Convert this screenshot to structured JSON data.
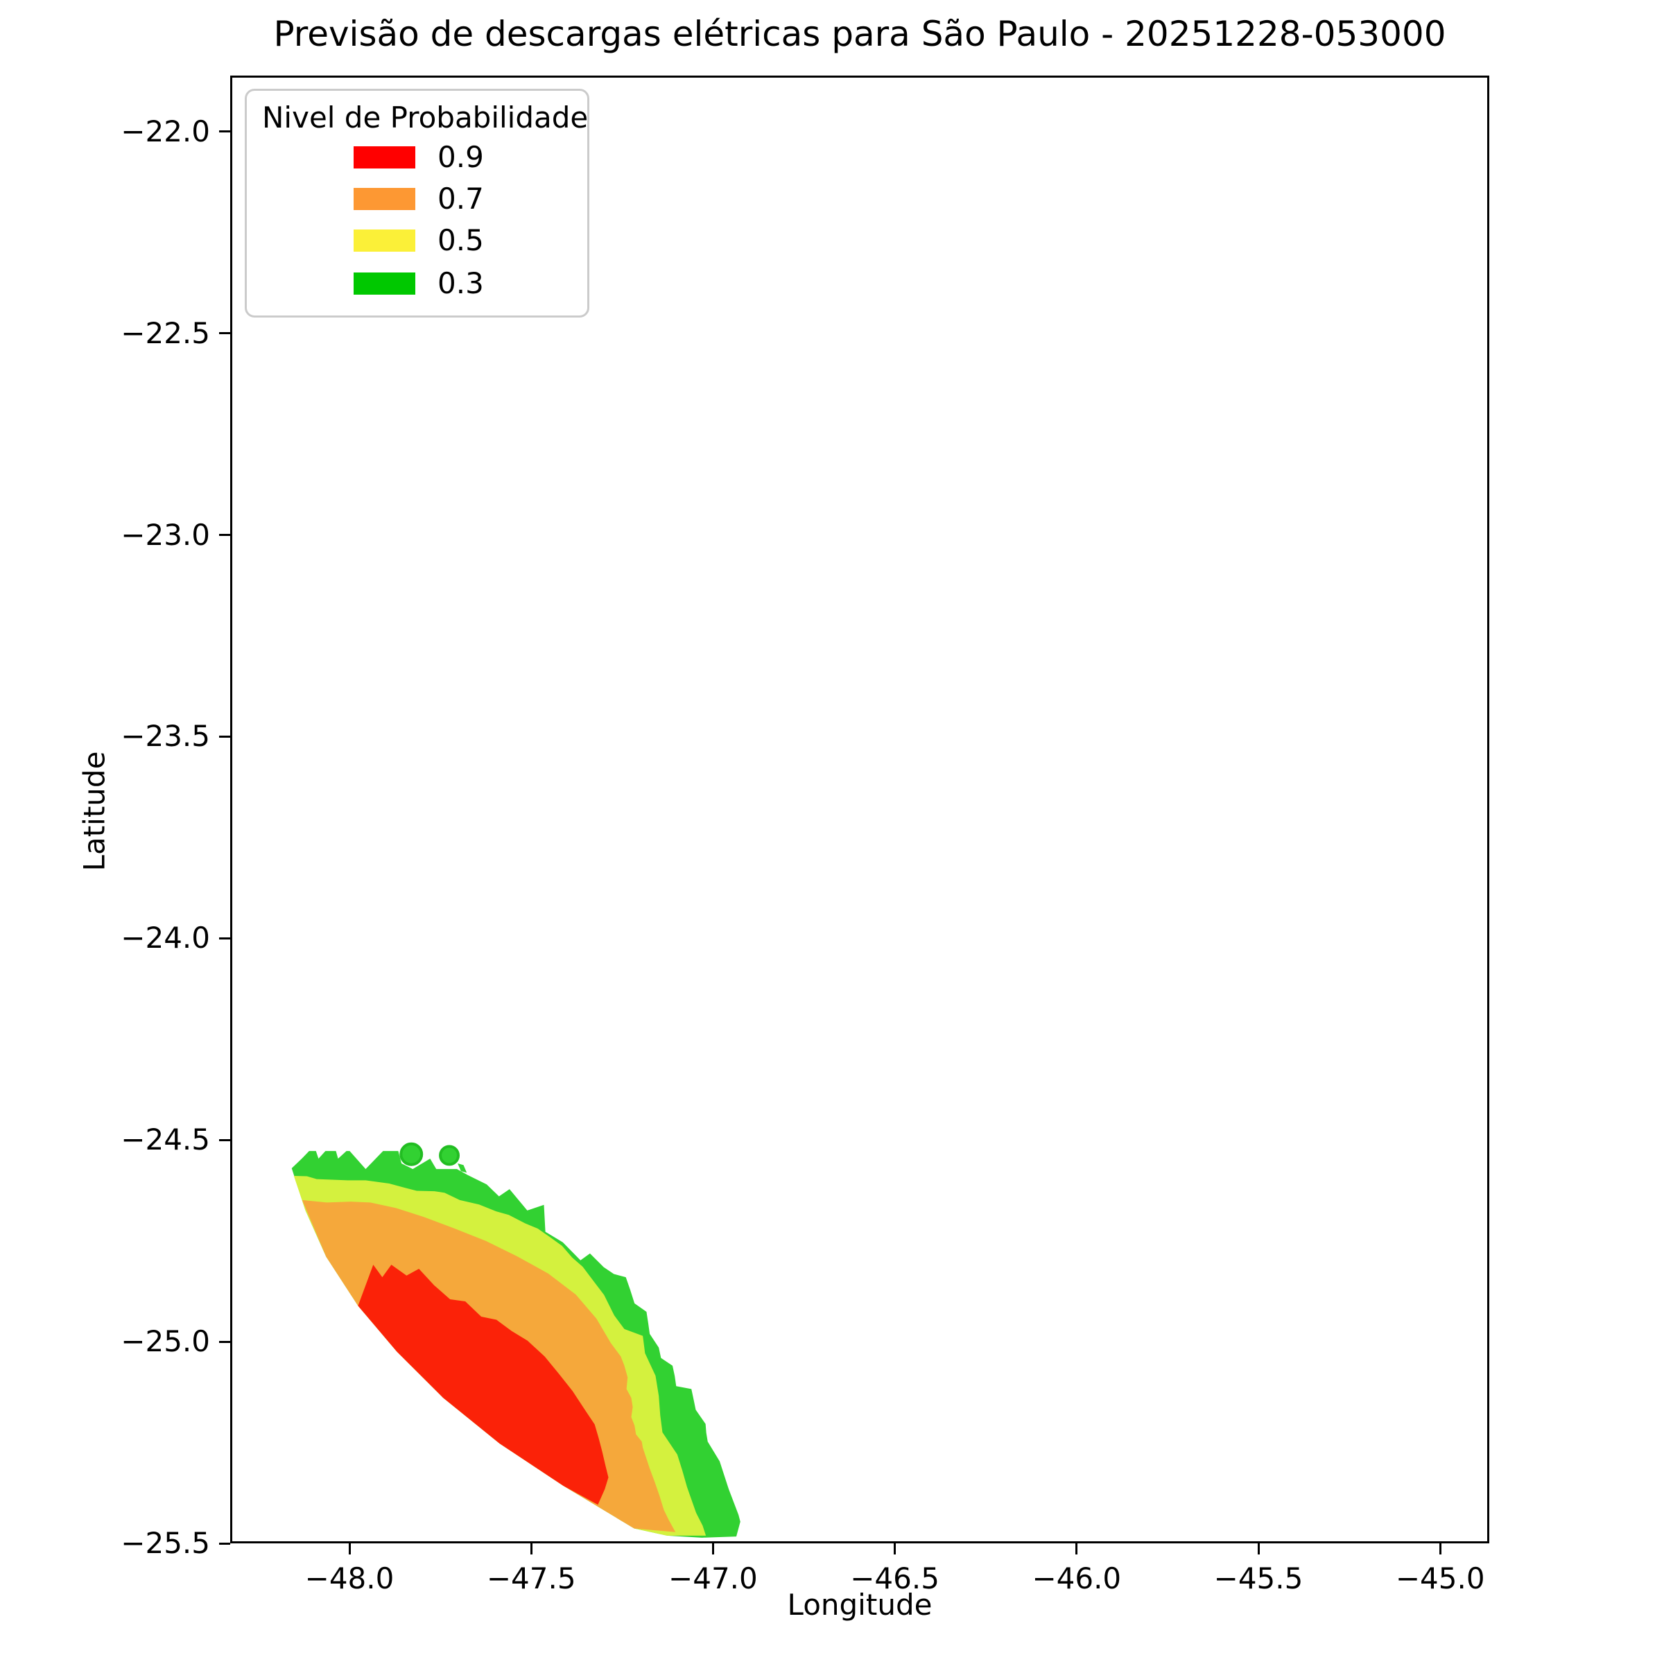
{
  "title": "Previsão de descargas elétricas para São Paulo - 20251228-053000",
  "axes": {
    "xlabel": "Longitude",
    "ylabel": "Latitude",
    "xticks": {
      "values": [
        -48.0,
        -47.5,
        -47.0,
        -46.5,
        -46.0,
        -45.5,
        -45.0
      ],
      "labels": [
        "−48.0",
        "−47.5",
        "−47.0",
        "−46.5",
        "−46.0",
        "−45.5",
        "−45.0"
      ]
    },
    "yticks": {
      "values": [
        -22.0,
        -22.5,
        -23.0,
        -23.5,
        -24.0,
        -24.5,
        -25.0,
        -25.5
      ],
      "labels": [
        "−22.0",
        "−22.5",
        "−23.0",
        "−23.5",
        "−24.0",
        "−24.5",
        "−25.0",
        "−25.5"
      ]
    }
  },
  "legend": {
    "title": "Nivel de Probabilidade",
    "entries": [
      {
        "label": "0.9",
        "color": "#ff0000"
      },
      {
        "label": "0.7",
        "color": "#fd9833"
      },
      {
        "label": "0.5",
        "color": "#fbf038"
      },
      {
        "label": "0.3",
        "color": "#00c800"
      }
    ]
  },
  "chart_data": {
    "type": "contour",
    "title": "Previsão de descargas elétricas para São Paulo - 20251228-053000",
    "xlabel": "Longitude",
    "ylabel": "Latitude",
    "xlim": [
      -48.328,
      -44.865
    ],
    "ylim": [
      -25.5,
      -21.861
    ],
    "grid": false,
    "legend_position": "upper left",
    "levels": [
      0.3,
      0.5,
      0.7,
      0.9
    ],
    "level_colors": {
      "0.3": "#32d132",
      "0.5": "#d4f13e",
      "0.7": "#f5a83b",
      "0.9": "#fb2208"
    },
    "regions": [
      {
        "level": 0.3,
        "color": "#32d132",
        "points": [
          [
            -48.164,
            -24.573
          ],
          [
            -48.135,
            -24.548
          ],
          [
            -48.116,
            -24.53
          ],
          [
            -48.097,
            -24.53
          ],
          [
            -48.09,
            -24.549
          ],
          [
            -48.071,
            -24.53
          ],
          [
            -48.042,
            -24.53
          ],
          [
            -48.036,
            -24.549
          ],
          [
            -48.013,
            -24.53
          ],
          [
            -48.004,
            -24.53
          ],
          [
            -47.96,
            -24.575
          ],
          [
            -47.912,
            -24.53
          ],
          [
            -47.87,
            -24.53
          ],
          [
            -47.861,
            -24.561
          ],
          [
            -47.83,
            -24.575
          ],
          [
            -47.782,
            -24.549
          ],
          [
            -47.765,
            -24.575
          ],
          [
            -47.708,
            -24.575
          ],
          [
            -47.678,
            -24.59
          ],
          [
            -47.626,
            -24.613
          ],
          [
            -47.592,
            -24.643
          ],
          [
            -47.563,
            -24.625
          ],
          [
            -47.514,
            -24.678
          ],
          [
            -47.468,
            -24.664
          ],
          [
            -47.464,
            -24.731
          ],
          [
            -47.416,
            -24.757
          ],
          [
            -47.367,
            -24.802
          ],
          [
            -47.341,
            -24.785
          ],
          [
            -47.303,
            -24.819
          ],
          [
            -47.275,
            -24.836
          ],
          [
            -47.242,
            -24.844
          ],
          [
            -47.23,
            -24.875
          ],
          [
            -47.218,
            -24.909
          ],
          [
            -47.185,
            -24.93
          ],
          [
            -47.18,
            -24.959
          ],
          [
            -47.176,
            -24.985
          ],
          [
            -47.151,
            -25.019
          ],
          [
            -47.145,
            -25.045
          ],
          [
            -47.113,
            -25.064
          ],
          [
            -47.107,
            -25.09
          ],
          [
            -47.103,
            -25.115
          ],
          [
            -47.061,
            -25.122
          ],
          [
            -47.055,
            -25.148
          ],
          [
            -47.049,
            -25.174
          ],
          [
            -47.022,
            -25.209
          ],
          [
            -47.02,
            -25.231
          ],
          [
            -47.016,
            -25.253
          ],
          [
            -46.983,
            -25.302
          ],
          [
            -46.958,
            -25.371
          ],
          [
            -46.931,
            -25.435
          ],
          [
            -46.926,
            -25.452
          ],
          [
            -46.937,
            -25.489
          ],
          [
            -47.032,
            -25.492
          ],
          [
            -47.128,
            -25.487
          ],
          [
            -47.219,
            -25.469
          ],
          [
            -47.414,
            -25.363
          ],
          [
            -47.59,
            -25.258
          ],
          [
            -47.746,
            -25.144
          ],
          [
            -47.874,
            -25.029
          ],
          [
            -47.981,
            -24.915
          ],
          [
            -48.069,
            -24.793
          ],
          [
            -48.126,
            -24.678
          ]
        ]
      },
      {
        "level": 0.5,
        "color": "#d4f13e",
        "points": [
          [
            -48.158,
            -24.592
          ],
          [
            -48.122,
            -24.593
          ],
          [
            -48.095,
            -24.6
          ],
          [
            -48.01,
            -24.603
          ],
          [
            -47.96,
            -24.603
          ],
          [
            -47.895,
            -24.611
          ],
          [
            -47.85,
            -24.622
          ],
          [
            -47.819,
            -24.629
          ],
          [
            -47.77,
            -24.63
          ],
          [
            -47.742,
            -24.634
          ],
          [
            -47.7,
            -24.652
          ],
          [
            -47.647,
            -24.663
          ],
          [
            -47.6,
            -24.68
          ],
          [
            -47.565,
            -24.689
          ],
          [
            -47.52,
            -24.71
          ],
          [
            -47.485,
            -24.723
          ],
          [
            -47.45,
            -24.745
          ],
          [
            -47.418,
            -24.766
          ],
          [
            -47.39,
            -24.795
          ],
          [
            -47.361,
            -24.818
          ],
          [
            -47.33,
            -24.855
          ],
          [
            -47.302,
            -24.888
          ],
          [
            -47.274,
            -24.939
          ],
          [
            -47.246,
            -24.973
          ],
          [
            -47.195,
            -24.99
          ],
          [
            -47.189,
            -25.033
          ],
          [
            -47.16,
            -25.089
          ],
          [
            -47.151,
            -25.139
          ],
          [
            -47.147,
            -25.187
          ],
          [
            -47.141,
            -25.23
          ],
          [
            -47.1,
            -25.285
          ],
          [
            -47.086,
            -25.325
          ],
          [
            -47.073,
            -25.366
          ],
          [
            -47.048,
            -25.43
          ],
          [
            -47.03,
            -25.462
          ],
          [
            -47.021,
            -25.487
          ],
          [
            -47.128,
            -25.487
          ],
          [
            -47.219,
            -25.469
          ],
          [
            -47.414,
            -25.363
          ],
          [
            -47.59,
            -25.258
          ],
          [
            -47.746,
            -25.144
          ],
          [
            -47.874,
            -25.029
          ],
          [
            -47.981,
            -24.915
          ],
          [
            -48.069,
            -24.793
          ],
          [
            -48.126,
            -24.678
          ]
        ]
      },
      {
        "level": 0.7,
        "color": "#f5a83b",
        "points": [
          [
            -48.135,
            -24.652
          ],
          [
            -48.067,
            -24.658
          ],
          [
            -48.0,
            -24.656
          ],
          [
            -47.947,
            -24.658
          ],
          [
            -47.876,
            -24.672
          ],
          [
            -47.8,
            -24.694
          ],
          [
            -47.714,
            -24.723
          ],
          [
            -47.628,
            -24.754
          ],
          [
            -47.542,
            -24.792
          ],
          [
            -47.456,
            -24.835
          ],
          [
            -47.38,
            -24.887
          ],
          [
            -47.323,
            -24.947
          ],
          [
            -47.284,
            -25.007
          ],
          [
            -47.256,
            -25.041
          ],
          [
            -47.246,
            -25.064
          ],
          [
            -47.237,
            -25.093
          ],
          [
            -47.24,
            -25.122
          ],
          [
            -47.227,
            -25.144
          ],
          [
            -47.223,
            -25.167
          ],
          [
            -47.227,
            -25.192
          ],
          [
            -47.218,
            -25.213
          ],
          [
            -47.214,
            -25.235
          ],
          [
            -47.198,
            -25.253
          ],
          [
            -47.195,
            -25.268
          ],
          [
            -47.176,
            -25.32
          ],
          [
            -47.162,
            -25.354
          ],
          [
            -47.149,
            -25.388
          ],
          [
            -47.137,
            -25.423
          ],
          [
            -47.124,
            -25.447
          ],
          [
            -47.105,
            -25.478
          ],
          [
            -47.219,
            -25.469
          ],
          [
            -47.414,
            -25.363
          ],
          [
            -47.59,
            -25.258
          ],
          [
            -47.746,
            -25.144
          ],
          [
            -47.874,
            -25.029
          ],
          [
            -47.981,
            -24.915
          ],
          [
            -48.069,
            -24.793
          ]
        ]
      },
      {
        "level": 0.9,
        "color": "#fb2208",
        "points": [
          [
            -47.981,
            -24.915
          ],
          [
            -47.939,
            -24.813
          ],
          [
            -47.914,
            -24.844
          ],
          [
            -47.889,
            -24.813
          ],
          [
            -47.847,
            -24.84
          ],
          [
            -47.813,
            -24.823
          ],
          [
            -47.771,
            -24.864
          ],
          [
            -47.727,
            -24.899
          ],
          [
            -47.685,
            -24.904
          ],
          [
            -47.641,
            -24.942
          ],
          [
            -47.599,
            -24.95
          ],
          [
            -47.557,
            -24.978
          ],
          [
            -47.513,
            -25.002
          ],
          [
            -47.466,
            -25.041
          ],
          [
            -47.427,
            -25.084
          ],
          [
            -47.389,
            -25.127
          ],
          [
            -47.351,
            -25.179
          ],
          [
            -47.328,
            -25.21
          ],
          [
            -47.317,
            -25.244
          ],
          [
            -47.307,
            -25.278
          ],
          [
            -47.298,
            -25.313
          ],
          [
            -47.29,
            -25.342
          ],
          [
            -47.3,
            -25.371
          ],
          [
            -47.319,
            -25.41
          ],
          [
            -47.414,
            -25.363
          ],
          [
            -47.59,
            -25.258
          ],
          [
            -47.746,
            -25.144
          ],
          [
            -47.874,
            -25.029
          ]
        ]
      }
    ],
    "markers": [
      {
        "type": "circle",
        "lon": -47.834,
        "lat": -24.538,
        "radius_px": 15,
        "fill": "#32d132",
        "edge": "#22bd22"
      },
      {
        "type": "circle",
        "lon": -47.729,
        "lat": -24.541,
        "radius_px": 13,
        "fill": "#32d132",
        "edge": "#22bd22"
      },
      {
        "type": "polygon",
        "color": "#32d132",
        "points": [
          [
            -47.706,
            -24.561
          ],
          [
            -47.69,
            -24.565
          ],
          [
            -47.681,
            -24.584
          ],
          [
            -47.697,
            -24.58
          ]
        ]
      }
    ]
  }
}
